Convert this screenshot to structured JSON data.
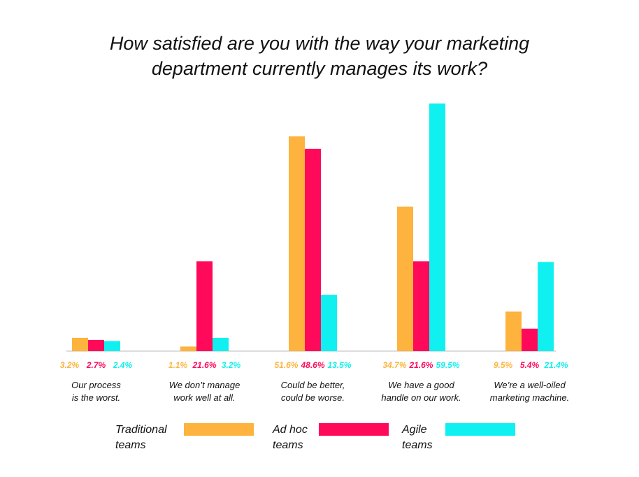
{
  "chart_data": {
    "type": "bar",
    "title": "How satisfied are you with the way your marketing\ndepartment currently manages its work?",
    "categories": [
      "Our process\nis the worst.",
      "We don’t manage\nwork well at all.",
      "Could be better,\ncould be worse.",
      "We have a good\nhandle on our work.",
      "We’re a well-oiled\nmarketing machine."
    ],
    "series": [
      {
        "name": "Traditional\nteams",
        "color": "#fdb33d",
        "values": [
          3.2,
          1.1,
          51.6,
          34.7,
          9.5
        ],
        "value_labels": [
          "3.2%",
          "1.1%",
          "51.6%",
          "34.7%",
          "9.5%"
        ]
      },
      {
        "name": "Ad hoc\nteams",
        "color": "#ff0a5a",
        "values": [
          2.7,
          21.6,
          48.6,
          21.6,
          5.4
        ],
        "value_labels": [
          "2.7%",
          "21.6%",
          "48.6%",
          "21.6%",
          "5.4%"
        ]
      },
      {
        "name": "Agile\nteams",
        "color": "#11f0f0",
        "values": [
          2.4,
          3.2,
          13.5,
          59.5,
          21.4
        ],
        "value_labels": [
          "2.4%",
          "3.2%",
          "13.5%",
          "59.5%",
          "21.4%"
        ]
      }
    ],
    "ylim": [
      0,
      60
    ]
  }
}
